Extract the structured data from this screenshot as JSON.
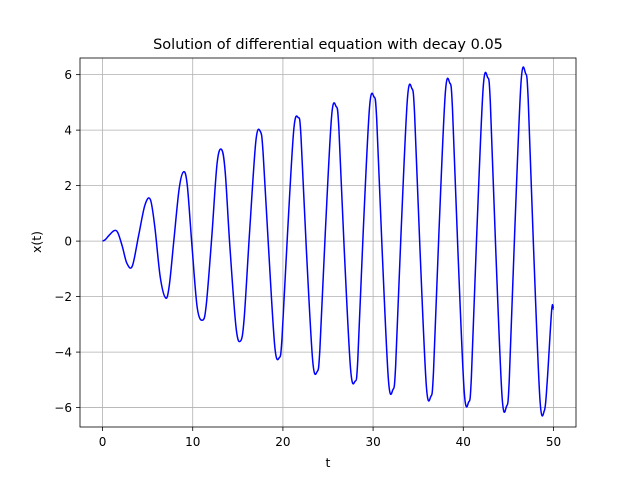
{
  "chart_data": {
    "type": "line",
    "title": "Solution of differential equation with decay 0.05",
    "xlabel": "t",
    "ylabel": "x(t)",
    "xlim": [
      -2.5,
      52.5
    ],
    "ylim": [
      -6.7,
      6.6
    ],
    "xticks": [
      0,
      10,
      20,
      30,
      40,
      50
    ],
    "yticks": [
      -6,
      -4,
      -2,
      0,
      2,
      4,
      6
    ],
    "xtick_labels": [
      "0",
      "10",
      "20",
      "30",
      "40",
      "50"
    ],
    "ytick_labels": [
      "−6",
      "−4",
      "−2",
      "0",
      "2",
      "4",
      "6"
    ],
    "grid": true,
    "series": [
      {
        "color": "#0000ff",
        "x": [
          0,
          0.3,
          0.7,
          1.3,
          1.7,
          2.2,
          2.7,
          3.3,
          4.0,
          4.7,
          5.3,
          5.8,
          6.4,
          7.0,
          7.4,
          7.9,
          8.5,
          9.0,
          9.4,
          9.9,
          10.5,
          11.1,
          11.5,
          12.1,
          12.7,
          13.2,
          13.6,
          14.1,
          14.8,
          15.3,
          15.7,
          16.3,
          17.0,
          17.5,
          17.8,
          18.4,
          19.1,
          19.6,
          19.9,
          20.5,
          21.2,
          21.7,
          22.0,
          22.6,
          23.3,
          23.8,
          24.1,
          24.7,
          25.4,
          25.9,
          26.2,
          26.8,
          27.5,
          28.0,
          28.3,
          28.9,
          29.6,
          30.1,
          30.4,
          31.0,
          31.7,
          32.2,
          32.5,
          33.1,
          33.8,
          34.3,
          34.6,
          35.2,
          35.9,
          36.4,
          36.7,
          37.3,
          38.0,
          38.5,
          38.8,
          39.4,
          40.1,
          40.6,
          40.9,
          41.5,
          42.2,
          42.7,
          43.0,
          43.6,
          44.3,
          44.8,
          45.1,
          45.7,
          46.4,
          46.9,
          47.2,
          47.8,
          48.5,
          49.0,
          49.3,
          49.8,
          50.0
        ],
        "y": [
          0.0,
          0.05,
          0.2,
          0.38,
          0.3,
          -0.2,
          -0.8,
          -0.9,
          0.2,
          1.3,
          1.5,
          0.5,
          -1.3,
          -2.05,
          -1.6,
          0.0,
          1.9,
          2.5,
          2.0,
          -0.1,
          -2.4,
          -2.85,
          -2.3,
          0.1,
          2.8,
          3.3,
          2.5,
          -0.1,
          -3.1,
          -3.6,
          -2.8,
          0.3,
          3.6,
          3.95,
          3.2,
          -0.2,
          -3.8,
          -4.2,
          -3.5,
          0.2,
          4.0,
          4.45,
          3.8,
          -0.3,
          -4.3,
          -4.7,
          -3.9,
          0.3,
          4.5,
          4.85,
          4.1,
          -0.3,
          -4.6,
          -5.05,
          -4.3,
          0.3,
          4.8,
          5.2,
          4.4,
          -0.3,
          -5.0,
          -5.35,
          -4.5,
          0.3,
          5.1,
          5.5,
          4.6,
          -0.3,
          -5.2,
          -5.6,
          -4.7,
          0.3,
          5.3,
          5.7,
          4.8,
          -0.3,
          -5.4,
          -5.8,
          -4.9,
          0.3,
          5.5,
          5.9,
          5.0,
          -0.3,
          -5.6,
          -5.95,
          -5.0,
          0.3,
          5.7,
          6.05,
          5.1,
          -0.3,
          -5.7,
          -6.1,
          -5.1,
          -2.5,
          -2.45
        ]
      }
    ]
  }
}
